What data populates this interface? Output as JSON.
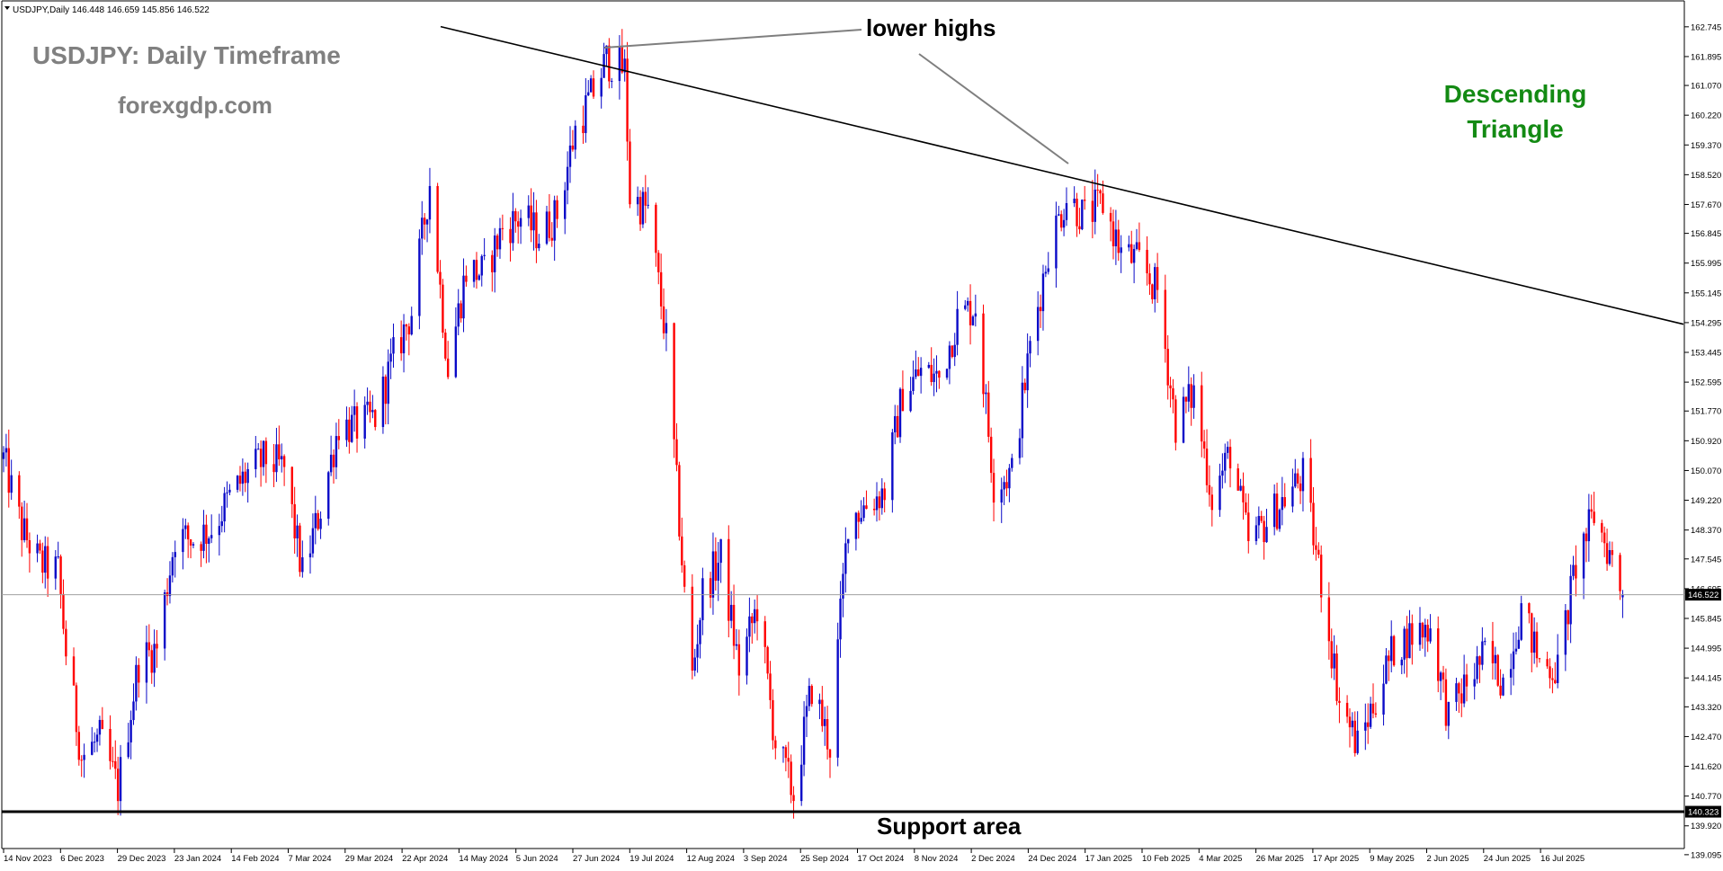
{
  "header": {
    "symbol_info": "USDJPY,Daily  146.448 146.659 145.856 146.522"
  },
  "annotations": {
    "title": "USDJPY: Daily Timeframe",
    "website": "forexgdp.com",
    "pattern_line1": "Descending",
    "pattern_line2": "Triangle",
    "lower_highs": "lower highs",
    "support": "Support area"
  },
  "colors": {
    "bull": "#0a0ac8",
    "bear": "#ff0000",
    "title_gray": "#808080",
    "pattern_green": "#138a13",
    "line": "#000000",
    "pointer": "#7f7f7f"
  },
  "chart_data": {
    "type": "candlestick",
    "symbol": "USDJPY",
    "timeframe": "Daily",
    "last_ohlc": {
      "open": 146.448,
      "high": 146.659,
      "low": 145.856,
      "close": 146.522
    },
    "current_price": 146.522,
    "support_level": 140.323,
    "ylim": [
      139.4,
      163.1
    ],
    "y_ticks": [
      "162.745",
      "161.895",
      "161.070",
      "160.220",
      "159.370",
      "158.520",
      "157.670",
      "156.845",
      "155.995",
      "155.145",
      "154.295",
      "153.445",
      "152.595",
      "151.770",
      "150.920",
      "150.070",
      "149.220",
      "148.370",
      "147.545",
      "146.695",
      "145.845",
      "144.995",
      "144.145",
      "143.320",
      "142.470",
      "141.620",
      "140.770",
      "139.920",
      "139.095"
    ],
    "x_ticks": [
      "14 Nov 2023",
      "6 Dec 2023",
      "29 Dec 2023",
      "23 Jan 2024",
      "14 Feb 2024",
      "7 Mar 2024",
      "29 Mar 2024",
      "22 Apr 2024",
      "14 May 2024",
      "5 Jun 2024",
      "27 Jun 2024",
      "19 Jul 2024",
      "12 Aug 2024",
      "3 Sep 2024",
      "25 Sep 2024",
      "17 Oct 2024",
      "8 Nov 2024",
      "2 Dec 2024",
      "24 Dec 2024",
      "17 Jan 2025",
      "10 Feb 2025",
      "4 Mar 2025",
      "26 Mar 2025",
      "17 Apr 2025",
      "9 May 2025",
      "2 Jun 2025",
      "24 Jun 2025",
      "16 Jul 2025"
    ],
    "grid": false,
    "trendline": {
      "type": "descending resistance",
      "start": [
        "2024-03-15",
        162.75
      ],
      "end": [
        "2025-08-20",
        154.25
      ]
    },
    "closes_approx": [
      {
        "date": "2023-11-14",
        "close": 150.4
      },
      {
        "date": "2023-11-21",
        "close": 148.4
      },
      {
        "date": "2023-11-28",
        "close": 147.4
      },
      {
        "date": "2023-12-05",
        "close": 147.2
      },
      {
        "date": "2023-12-08",
        "close": 144.9
      },
      {
        "date": "2023-12-14",
        "close": 141.9
      },
      {
        "date": "2023-12-21",
        "close": 142.4
      },
      {
        "date": "2023-12-28",
        "close": 141.0
      },
      {
        "date": "2024-01-05",
        "close": 144.6
      },
      {
        "date": "2024-01-12",
        "close": 145.0
      },
      {
        "date": "2024-01-19",
        "close": 148.2
      },
      {
        "date": "2024-01-26",
        "close": 148.1
      },
      {
        "date": "2024-02-02",
        "close": 148.4
      },
      {
        "date": "2024-02-09",
        "close": 149.3
      },
      {
        "date": "2024-02-16",
        "close": 150.0
      },
      {
        "date": "2024-02-23",
        "close": 150.4
      },
      {
        "date": "2024-03-01",
        "close": 150.1
      },
      {
        "date": "2024-03-08",
        "close": 147.1
      },
      {
        "date": "2024-03-15",
        "close": 149.0
      },
      {
        "date": "2024-03-22",
        "close": 151.4
      },
      {
        "date": "2024-03-29",
        "close": 151.3
      },
      {
        "date": "2024-04-05",
        "close": 151.6
      },
      {
        "date": "2024-04-12",
        "close": 153.3
      },
      {
        "date": "2024-04-19",
        "close": 154.6
      },
      {
        "date": "2024-04-26",
        "close": 158.3
      },
      {
        "date": "2024-05-03",
        "close": 153.0
      },
      {
        "date": "2024-05-10",
        "close": 155.8
      },
      {
        "date": "2024-05-17",
        "close": 155.7
      },
      {
        "date": "2024-05-24",
        "close": 157.0
      },
      {
        "date": "2024-05-31",
        "close": 157.3
      },
      {
        "date": "2024-06-07",
        "close": 156.8
      },
      {
        "date": "2024-06-14",
        "close": 157.4
      },
      {
        "date": "2024-06-21",
        "close": 159.8
      },
      {
        "date": "2024-06-28",
        "close": 160.9
      },
      {
        "date": "2024-07-03",
        "close": 161.8
      },
      {
        "date": "2024-07-10",
        "close": 161.5
      },
      {
        "date": "2024-07-12",
        "close": 157.9
      },
      {
        "date": "2024-07-19",
        "close": 157.5
      },
      {
        "date": "2024-07-26",
        "close": 153.8
      },
      {
        "date": "2024-08-02",
        "close": 146.5
      },
      {
        "date": "2024-08-05",
        "close": 144.2
      },
      {
        "date": "2024-08-09",
        "close": 146.6
      },
      {
        "date": "2024-08-16",
        "close": 147.6
      },
      {
        "date": "2024-08-23",
        "close": 144.4
      },
      {
        "date": "2024-08-30",
        "close": 146.2
      },
      {
        "date": "2024-09-06",
        "close": 142.3
      },
      {
        "date": "2024-09-13",
        "close": 140.8
      },
      {
        "date": "2024-09-20",
        "close": 143.9
      },
      {
        "date": "2024-09-27",
        "close": 142.2
      },
      {
        "date": "2024-10-04",
        "close": 148.7
      },
      {
        "date": "2024-10-11",
        "close": 149.1
      },
      {
        "date": "2024-10-18",
        "close": 149.5
      },
      {
        "date": "2024-10-25",
        "close": 152.3
      },
      {
        "date": "2024-11-01",
        "close": 152.9
      },
      {
        "date": "2024-11-08",
        "close": 152.7
      },
      {
        "date": "2024-11-15",
        "close": 154.4
      },
      {
        "date": "2024-11-22",
        "close": 154.8
      },
      {
        "date": "2024-11-29",
        "close": 149.7
      },
      {
        "date": "2024-12-06",
        "close": 150.0
      },
      {
        "date": "2024-12-13",
        "close": 153.6
      },
      {
        "date": "2024-12-20",
        "close": 156.4
      },
      {
        "date": "2024-12-27",
        "close": 157.9
      },
      {
        "date": "2025-01-03",
        "close": 157.3
      },
      {
        "date": "2025-01-10",
        "close": 157.7
      },
      {
        "date": "2025-01-17",
        "close": 156.3
      },
      {
        "date": "2025-01-24",
        "close": 156.0
      },
      {
        "date": "2025-01-31",
        "close": 155.2
      },
      {
        "date": "2025-02-07",
        "close": 151.4
      },
      {
        "date": "2025-02-14",
        "close": 152.3
      },
      {
        "date": "2025-02-21",
        "close": 149.3
      },
      {
        "date": "2025-02-28",
        "close": 150.6
      },
      {
        "date": "2025-03-07",
        "close": 148.0
      },
      {
        "date": "2025-03-14",
        "close": 148.6
      },
      {
        "date": "2025-03-21",
        "close": 149.3
      },
      {
        "date": "2025-03-28",
        "close": 149.9
      },
      {
        "date": "2025-04-04",
        "close": 146.9
      },
      {
        "date": "2025-04-11",
        "close": 143.5
      },
      {
        "date": "2025-04-18",
        "close": 142.2
      },
      {
        "date": "2025-04-25",
        "close": 143.6
      },
      {
        "date": "2025-05-02",
        "close": 145.0
      },
      {
        "date": "2025-05-09",
        "close": 145.4
      },
      {
        "date": "2025-05-16",
        "close": 145.6
      },
      {
        "date": "2025-05-23",
        "close": 143.0
      },
      {
        "date": "2025-05-30",
        "close": 144.0
      },
      {
        "date": "2025-06-06",
        "close": 144.8
      },
      {
        "date": "2025-06-13",
        "close": 144.1
      },
      {
        "date": "2025-06-20",
        "close": 146.1
      },
      {
        "date": "2025-06-27",
        "close": 144.6
      },
      {
        "date": "2025-07-04",
        "close": 144.4
      },
      {
        "date": "2025-07-11",
        "close": 147.4
      },
      {
        "date": "2025-07-18",
        "close": 148.8
      },
      {
        "date": "2025-07-25",
        "close": 147.5
      },
      {
        "date": "2025-07-29",
        "close": 146.5
      }
    ]
  }
}
